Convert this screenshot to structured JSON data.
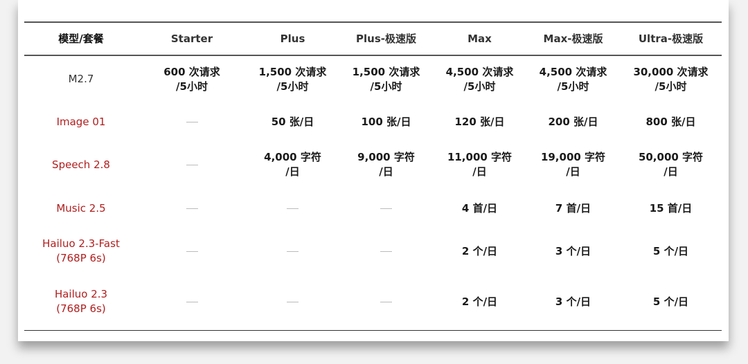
{
  "header": [
    "模型/套餐",
    "Starter",
    "Plus",
    "Plus-极速版",
    "Max",
    "Max-极速版",
    "Ultra-极速版"
  ],
  "accent_color": "#b01e1e",
  "rows": [
    {
      "model": [
        "M2.7"
      ],
      "red": false,
      "cells": [
        [
          "600 次请求",
          "/5小时"
        ],
        [
          "1,500 次请求",
          "/5小时"
        ],
        [
          "1,500 次请求",
          "/5小时"
        ],
        [
          "4,500 次请求",
          "/5小时"
        ],
        [
          "4,500 次请求",
          "/5小时"
        ],
        [
          "30,000 次请求",
          "/5小时"
        ]
      ]
    },
    {
      "model": [
        "Image 01"
      ],
      "red": true,
      "cells": [
        null,
        [
          "50 张/日"
        ],
        [
          "100 张/日"
        ],
        [
          "120 张/日"
        ],
        [
          "200 张/日"
        ],
        [
          "800 张/日"
        ]
      ]
    },
    {
      "model": [
        "Speech 2.8"
      ],
      "red": true,
      "cells": [
        null,
        [
          "4,000 字符",
          "/日"
        ],
        [
          "9,000 字符",
          "/日"
        ],
        [
          "11,000 字符",
          "/日"
        ],
        [
          "19,000 字符",
          "/日"
        ],
        [
          "50,000 字符",
          "/日"
        ]
      ]
    },
    {
      "model": [
        "Music 2.5"
      ],
      "red": true,
      "cells": [
        null,
        null,
        null,
        [
          "4 首/日"
        ],
        [
          "7 首/日"
        ],
        [
          "15 首/日"
        ]
      ]
    },
    {
      "model": [
        "Hailuo 2.3-Fast",
        "(768P 6s)"
      ],
      "red": true,
      "cells": [
        null,
        null,
        null,
        [
          "2 个/日"
        ],
        [
          "3 个/日"
        ],
        [
          "5 个/日"
        ]
      ]
    },
    {
      "model": [
        "Hailuo 2.3",
        "(768P 6s)"
      ],
      "red": true,
      "cells": [
        null,
        null,
        null,
        [
          "2 个/日"
        ],
        [
          "3 个/日"
        ],
        [
          "5 个/日"
        ]
      ]
    }
  ]
}
